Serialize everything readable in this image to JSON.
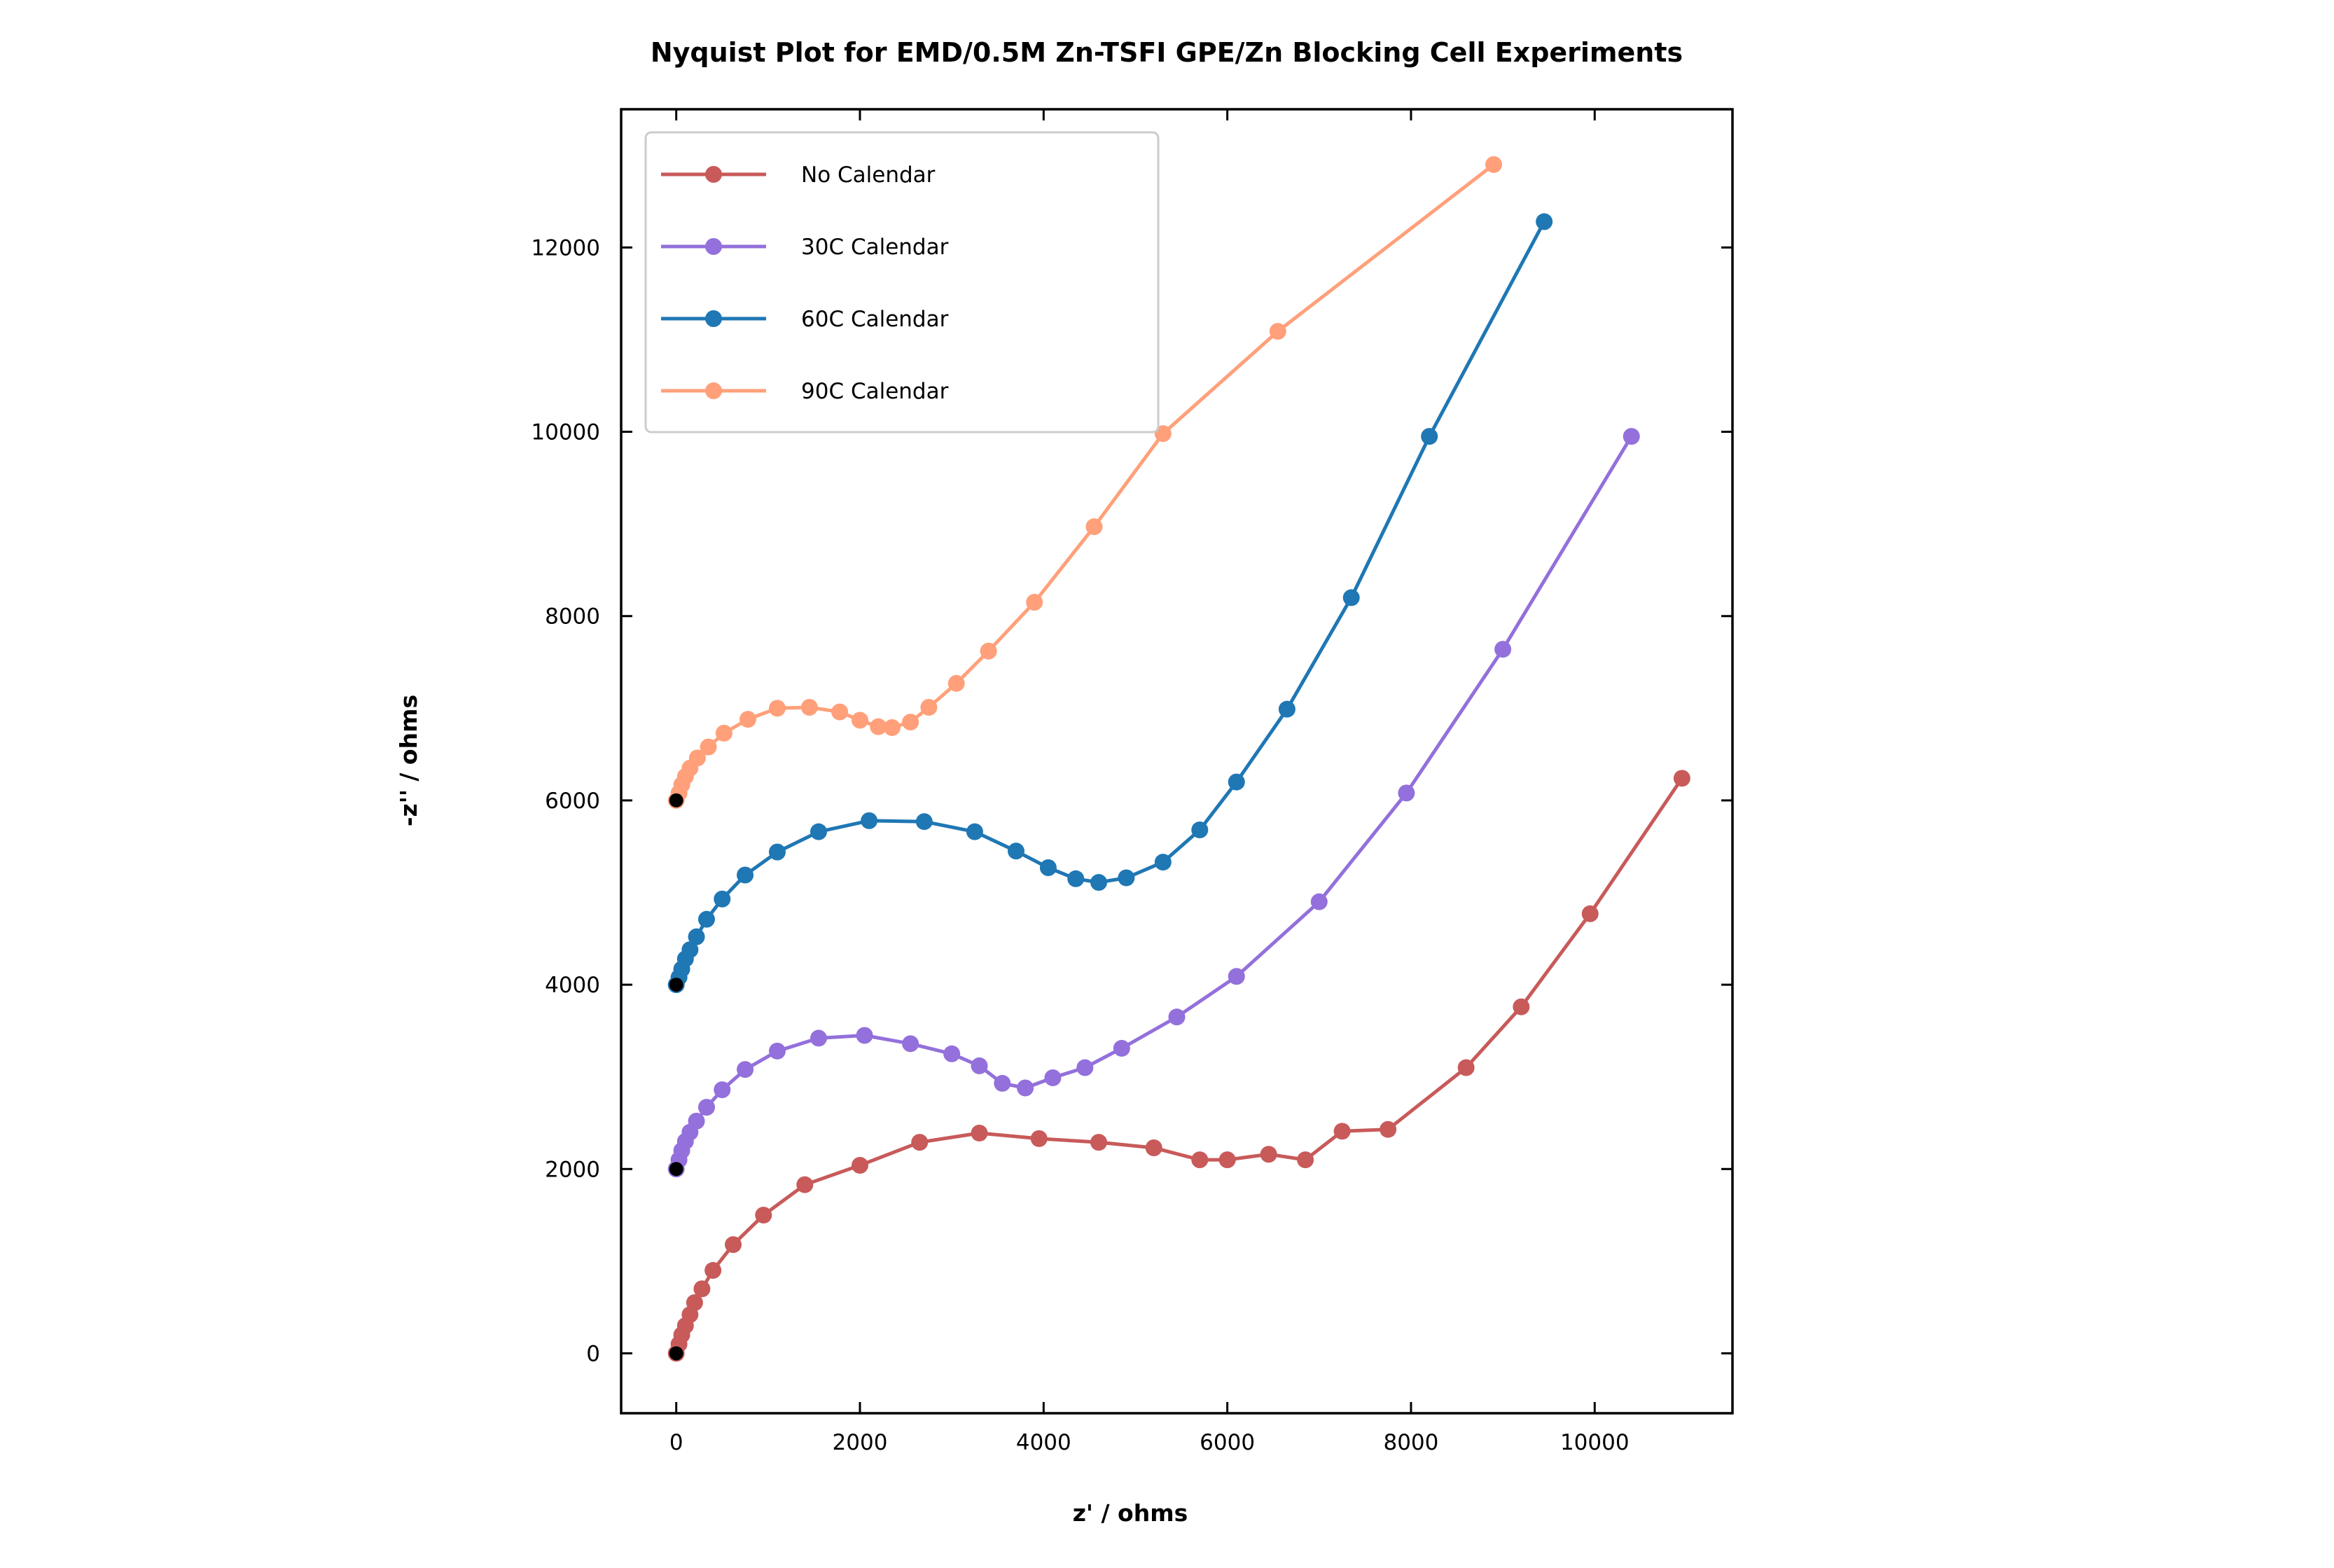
{
  "chart_data": {
    "type": "line",
    "title": "Nyquist Plot for EMD/0.5M Zn-TSFI GPE/Zn Blocking Cell Experiments",
    "xlabel": "z' / ohms",
    "ylabel": "-z'' / ohms",
    "xlim": [
      -600,
      11500
    ],
    "ylim": [
      -650,
      13500
    ],
    "xticks": [
      0,
      2000,
      4000,
      6000,
      8000,
      10000
    ],
    "yticks": [
      0,
      2000,
      4000,
      6000,
      8000,
      10000,
      12000
    ],
    "grid": false,
    "legend_position": "top-left",
    "start_marker_color": "#000000",
    "series": [
      {
        "name": "No Calendar",
        "color": "#c85a5a",
        "x": [
          0,
          30,
          60,
          100,
          150,
          200,
          280,
          400,
          620,
          950,
          1400,
          2000,
          2650,
          3300,
          3950,
          4600,
          5200,
          5700,
          6000,
          6450,
          6850,
          7250,
          7750,
          8600,
          9200,
          9950,
          10950
        ],
        "y": [
          0,
          100,
          200,
          300,
          420,
          550,
          700,
          900,
          1180,
          1500,
          1830,
          2040,
          2290,
          2390,
          2330,
          2290,
          2230,
          2100,
          2100,
          2160,
          2100,
          2410,
          2430,
          3100,
          3760,
          4770,
          6240
        ]
      },
      {
        "name": "30C Calendar",
        "color": "#9370db",
        "x": [
          0,
          30,
          60,
          100,
          150,
          220,
          330,
          500,
          750,
          1100,
          1550,
          2050,
          2550,
          3000,
          3300,
          3550,
          3800,
          4100,
          4450,
          4850,
          5450,
          6100,
          7000,
          7950,
          9000,
          10400
        ],
        "y": [
          2000,
          2100,
          2200,
          2300,
          2400,
          2520,
          2670,
          2860,
          3080,
          3280,
          3420,
          3450,
          3360,
          3250,
          3120,
          2930,
          2880,
          2990,
          3100,
          3310,
          3650,
          4090,
          4900,
          6080,
          7640,
          9950
        ]
      },
      {
        "name": "60C Calendar",
        "color": "#1f77b4",
        "x": [
          0,
          30,
          60,
          100,
          150,
          220,
          330,
          500,
          750,
          1100,
          1550,
          2100,
          2700,
          3250,
          3700,
          4050,
          4350,
          4600,
          4900,
          5300,
          5700,
          6100,
          6650,
          7350,
          8200,
          9450
        ],
        "y": [
          4000,
          4080,
          4170,
          4280,
          4380,
          4520,
          4710,
          4930,
          5190,
          5440,
          5660,
          5780,
          5770,
          5660,
          5450,
          5270,
          5150,
          5110,
          5160,
          5330,
          5680,
          6200,
          6990,
          8200,
          9950,
          12280
        ]
      },
      {
        "name": "90C Calendar",
        "color": "#ffa07a",
        "x": [
          0,
          30,
          60,
          100,
          150,
          230,
          350,
          520,
          780,
          1100,
          1450,
          1780,
          2000,
          2200,
          2350,
          2550,
          2750,
          3050,
          3400,
          3900,
          4550,
          5300,
          6550,
          8900
        ],
        "y": [
          6000,
          6080,
          6170,
          6260,
          6350,
          6460,
          6580,
          6730,
          6880,
          7000,
          7010,
          6960,
          6870,
          6800,
          6790,
          6850,
          7010,
          7270,
          7620,
          8150,
          8970,
          9980,
          11090,
          12900
        ]
      }
    ]
  }
}
